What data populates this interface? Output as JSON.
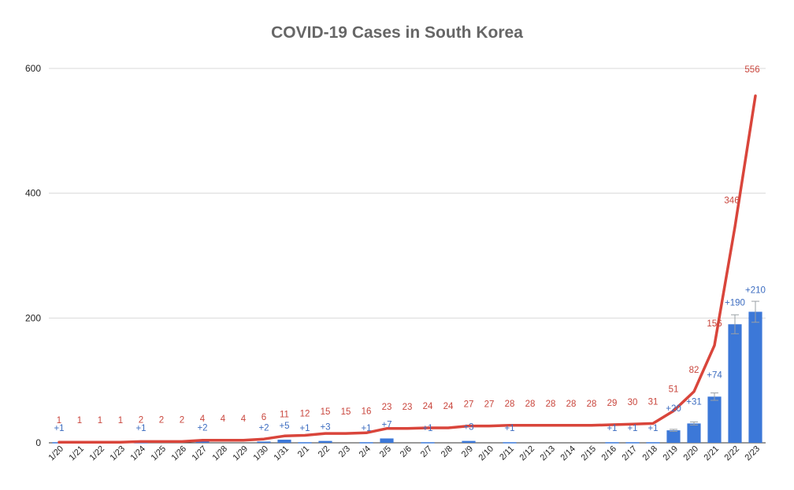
{
  "chart_data": {
    "type": "bar",
    "title": "COVID-19 Cases in South Korea",
    "xlabel": "",
    "ylabel": "",
    "ylim": [
      0,
      600
    ],
    "yticks": [
      "0",
      "200",
      "400",
      "600"
    ],
    "grid": true,
    "legend": "none",
    "colors": {
      "total_line": "#d9453b",
      "new_bars": "#3c78d8",
      "title": "#666666"
    },
    "categories": [
      "1/20",
      "1/21",
      "1/22",
      "1/23",
      "1/24",
      "1/25",
      "1/26",
      "1/27",
      "1/28",
      "1/29",
      "1/30",
      "1/31",
      "2/1",
      "2/2",
      "2/3",
      "2/4",
      "2/5",
      "2/6",
      "2/7",
      "2/8",
      "2/9",
      "2/10",
      "2/11",
      "2/12",
      "2/13",
      "2/14",
      "2/15",
      "2/16",
      "2/17",
      "2/18",
      "2/19",
      "2/20",
      "2/21",
      "2/22",
      "2/23"
    ],
    "series": [
      {
        "type": "line",
        "values": [
          1,
          1,
          1,
          1,
          2,
          2,
          2,
          4,
          4,
          4,
          6,
          11,
          12,
          15,
          15,
          16,
          23,
          23,
          24,
          24,
          27,
          27,
          28,
          28,
          28,
          28,
          28,
          29,
          30,
          31,
          51,
          82,
          156,
          346,
          556
        ],
        "labels": [
          "1",
          "1",
          "1",
          "1",
          "2",
          "2",
          "2",
          "4",
          "4",
          "4",
          "6",
          "11",
          "12",
          "15",
          "15",
          "16",
          "23",
          "23",
          "24",
          "24",
          "27",
          "27",
          "28",
          "28",
          "28",
          "28",
          "28",
          "29",
          "30",
          "31",
          "51",
          "82",
          "156",
          "346",
          "556"
        ]
      },
      {
        "type": "bar",
        "values": [
          1,
          0,
          0,
          0,
          1,
          0,
          0,
          2,
          0,
          0,
          2,
          5,
          1,
          3,
          0,
          1,
          7,
          0,
          1,
          0,
          3,
          0,
          1,
          0,
          0,
          0,
          0,
          1,
          1,
          1,
          20,
          31,
          74,
          190,
          210
        ],
        "labels": [
          "+1",
          "",
          "",
          "",
          "+1",
          "",
          "",
          "+2",
          "",
          "",
          "+2",
          "+5",
          "+1",
          "+3",
          "",
          "+1",
          "+7",
          "",
          "+1",
          "",
          "+3",
          "",
          "+1",
          "",
          "",
          "",
          "",
          "+1",
          "+1",
          "+1",
          "+20",
          "+31",
          "+74",
          "+190",
          "+210"
        ]
      }
    ]
  }
}
